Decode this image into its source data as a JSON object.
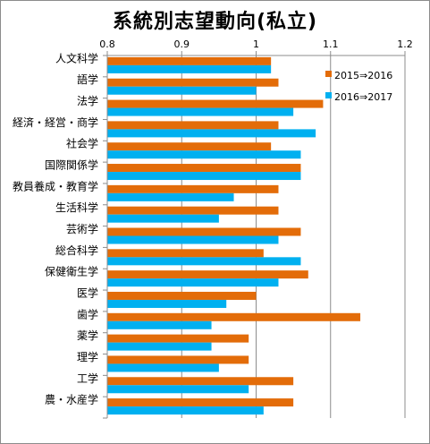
{
  "chart_data": {
    "type": "bar",
    "orientation": "horizontal",
    "title": "系統別志望動向(私立)",
    "categories": [
      "人文科学",
      "語学",
      "法学",
      "経済・経営・商学",
      "社会学",
      "国際関係学",
      "教員養成・教育学",
      "生活科学",
      "芸術学",
      "総合科学",
      "保健衛生学",
      "医学",
      "歯学",
      "薬学",
      "理学",
      "工学",
      "農・水産学"
    ],
    "series": [
      {
        "name": "2015⇒2016",
        "color": "#e36c09",
        "values": [
          1.02,
          1.03,
          1.09,
          1.03,
          1.02,
          1.06,
          1.03,
          1.03,
          1.06,
          1.01,
          1.07,
          1.0,
          1.14,
          0.99,
          0.99,
          1.05,
          1.05
        ]
      },
      {
        "name": "2016⇒2017",
        "color": "#00b0f0",
        "values": [
          1.02,
          1.0,
          1.05,
          1.08,
          1.06,
          1.06,
          0.97,
          0.95,
          1.03,
          1.06,
          1.03,
          0.96,
          0.94,
          0.94,
          0.95,
          0.99,
          1.01
        ]
      }
    ],
    "xlim": [
      0.8,
      1.2
    ],
    "xticks": [
      "0.8",
      "0.9",
      "1",
      "1.1",
      "1.2"
    ],
    "x_axis_position": "top",
    "grid": "vertical",
    "legend_position": "top-right"
  }
}
